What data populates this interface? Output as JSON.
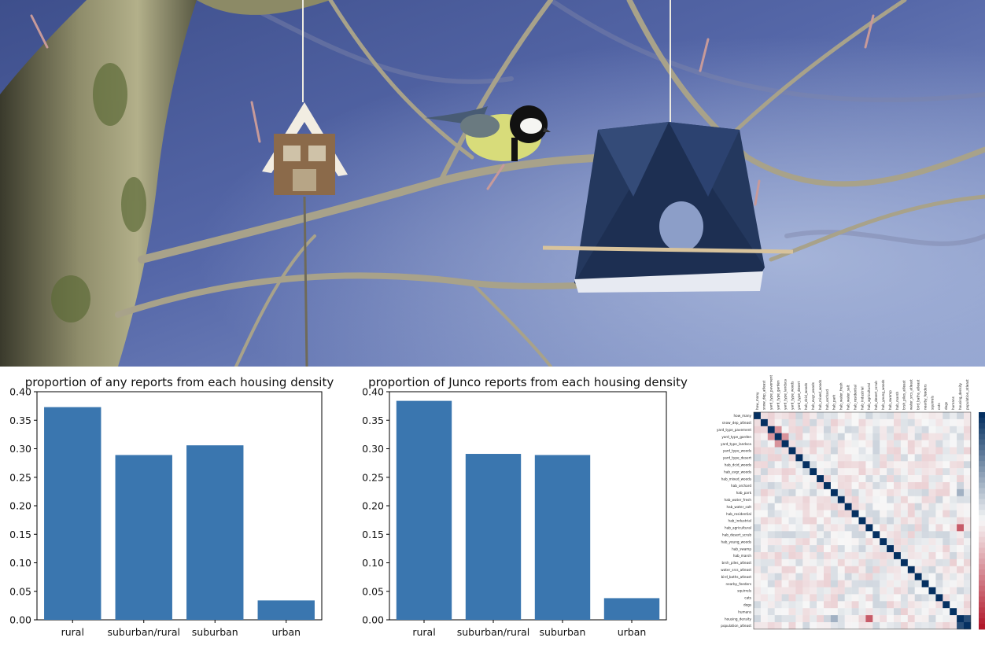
{
  "photo": {
    "subject": "great-tit-on-branch-with-bird-feeder"
  },
  "chart_data": [
    {
      "type": "bar",
      "title": "proportion of any reports from each housing density",
      "categories": [
        "rural",
        "suburban/rural",
        "suburban",
        "urban"
      ],
      "values": [
        0.373,
        0.289,
        0.306,
        0.034
      ],
      "ylim": [
        0,
        0.4
      ],
      "yticks": [
        "0.00",
        "0.05",
        "0.10",
        "0.15",
        "0.20",
        "0.25",
        "0.30",
        "0.35",
        "0.40"
      ],
      "xlabel": "",
      "ylabel": "",
      "color": "#3a76af"
    },
    {
      "type": "bar",
      "title": "proportion of Junco reports from each housing density",
      "categories": [
        "rural",
        "suburban/rural",
        "suburban",
        "urban"
      ],
      "values": [
        0.384,
        0.291,
        0.289,
        0.038
      ],
      "ylim": [
        0,
        0.4
      ],
      "yticks": [
        "0.00",
        "0.05",
        "0.10",
        "0.15",
        "0.20",
        "0.25",
        "0.30",
        "0.35",
        "0.40"
      ],
      "xlabel": "",
      "ylabel": "",
      "color": "#3a76af"
    },
    {
      "type": "heatmap",
      "labels": [
        "how_many",
        "snow_dep_atleast",
        "yard_type_pavement",
        "yard_type_garden",
        "yard_type_landsca",
        "yard_type_woods",
        "yard_type_desert",
        "hab_dcid_woods",
        "hab_evgr_woods",
        "hab_mixed_woods",
        "hab_orchard",
        "hab_park",
        "hab_water_fresh",
        "hab_water_salt",
        "hab_residential",
        "hab_industrial",
        "hab_agricultural",
        "hab_desert_scrub",
        "hab_young_woods",
        "hab_swamp",
        "hab_marsh",
        "brsh_piles_atleast",
        "water_srcs_atleast",
        "bird_baths_atleast",
        "nearby_feeders",
        "squirrels",
        "cats",
        "dogs",
        "humans",
        "housing_density",
        "population_atleast"
      ],
      "colormap": "RdBu",
      "diagonal": 1.0
    }
  ]
}
